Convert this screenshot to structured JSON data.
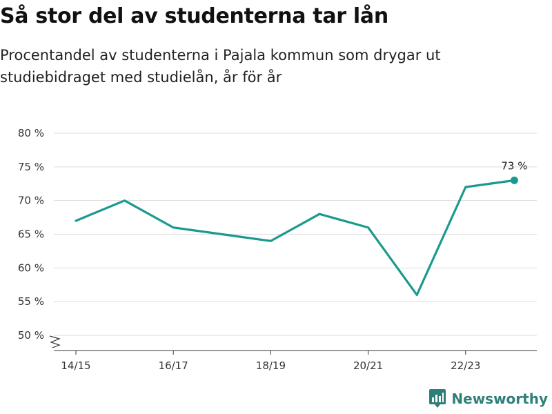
{
  "title": "Så stor del av studenterna tar lån",
  "subtitle": "Procentandel av studenterna i Pajala kommun som drygar ut studiebidraget med studielån, år för år",
  "brand": {
    "name": "Newsworthy",
    "icon": "newsworthy-logo-icon"
  },
  "colors": {
    "line": "#1a9a8e",
    "grid": "#dddddd",
    "axis": "#333333",
    "brand": "#2f7f79"
  },
  "chart_data": {
    "type": "line",
    "x": [
      "14/15",
      "15/16",
      "16/17",
      "17/18",
      "18/19",
      "19/20",
      "20/21",
      "21/22",
      "22/23",
      "23/24"
    ],
    "x_tick_labels": [
      "14/15",
      "16/17",
      "18/19",
      "20/21",
      "22/23"
    ],
    "series": [
      {
        "values": [
          67,
          70,
          66,
          65,
          64,
          68,
          66,
          56,
          72,
          73
        ]
      }
    ],
    "ylim": [
      50,
      80
    ],
    "y_ticks": [
      50,
      55,
      60,
      65,
      70,
      75,
      80
    ],
    "y_tick_format": "{v} %",
    "y_axis_break": true,
    "grid": true,
    "last_point_label": "73 %"
  }
}
